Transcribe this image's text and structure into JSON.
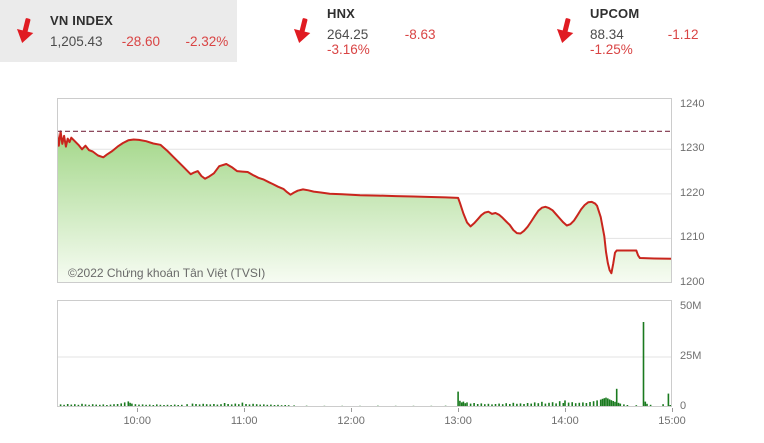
{
  "header": {
    "indices": [
      {
        "name": "VN INDEX",
        "value": "1,205.43",
        "change": "-28.60",
        "change_pct": "-2.32%",
        "direction": "down",
        "highlighted": true
      },
      {
        "name": "HNX",
        "value": "264.25",
        "change": "-8.63",
        "change_pct": "-3.16%",
        "direction": "down",
        "highlighted": false
      },
      {
        "name": "UPCOM",
        "value": "88.34",
        "change": "-1.12",
        "change_pct": "-1.25%",
        "direction": "down",
        "highlighted": false
      }
    ]
  },
  "watermark": "©2022 Chứng khoán Tân Việt (TVSI)",
  "colors": {
    "arrow_red": "#e01b22",
    "change_red": "#d94444",
    "price_line": "#c9251d",
    "reference_dash": "#7d3048",
    "fill_green_top": "#a3d789",
    "fill_green_bottom": "#f7fcf3",
    "volume_bar_green": "#1a7a1f",
    "grid_line": "#e3e3e3",
    "panel_border": "#cccccc",
    "highlight_cell_bg": "#ebebeb"
  },
  "chart_data": [
    {
      "type": "area",
      "name": "vnindex-intraday-price",
      "x_unit": "minutes since 09:15",
      "x_range_minutes": [
        0,
        345
      ],
      "ylim": [
        1200,
        1241.5
      ],
      "y_tick_values": [
        1240,
        1230,
        1220,
        1210,
        1200
      ],
      "y_tick_labels": [
        "1240",
        "1230",
        "1220",
        "1210",
        "1200"
      ],
      "grid_values": [
        1230,
        1220,
        1210
      ],
      "reference_value": 1234.03,
      "close_value": 1205.43,
      "legend": "none",
      "series": [
        [
          0,
          1233.8
        ],
        [
          1,
          1230.8
        ],
        [
          2,
          1234.0
        ],
        [
          3,
          1231.2
        ],
        [
          4,
          1233.0
        ],
        [
          5,
          1230.6
        ],
        [
          6,
          1232.4
        ],
        [
          7,
          1231.6
        ],
        [
          8,
          1232.6
        ],
        [
          10,
          1231.8
        ],
        [
          12,
          1231.0
        ],
        [
          14,
          1230.0
        ],
        [
          16,
          1230.8
        ],
        [
          18,
          1229.8
        ],
        [
          20,
          1229.5
        ],
        [
          23,
          1228.6
        ],
        [
          26,
          1228.2
        ],
        [
          28,
          1228.8
        ],
        [
          31,
          1229.6
        ],
        [
          34,
          1230.6
        ],
        [
          37,
          1231.4
        ],
        [
          40,
          1232.0
        ],
        [
          43,
          1232.2
        ],
        [
          46,
          1232.1
        ],
        [
          50,
          1231.8
        ],
        [
          54,
          1231.3
        ],
        [
          58,
          1231.0
        ],
        [
          62,
          1229.6
        ],
        [
          65,
          1228.4
        ],
        [
          68,
          1227.2
        ],
        [
          71,
          1226.0
        ],
        [
          74,
          1224.8
        ],
        [
          75,
          1224.4
        ],
        [
          77,
          1224.8
        ],
        [
          79,
          1225.1
        ],
        [
          81,
          1224.0
        ],
        [
          83,
          1223.4
        ],
        [
          85,
          1223.8
        ],
        [
          88,
          1224.6
        ],
        [
          91,
          1226.2
        ],
        [
          95,
          1226.7
        ],
        [
          98,
          1226.0
        ],
        [
          101,
          1225.1
        ],
        [
          104,
          1225.0
        ],
        [
          107,
          1224.9
        ],
        [
          110,
          1224.2
        ],
        [
          113,
          1223.6
        ],
        [
          116,
          1223.2
        ],
        [
          119,
          1222.6
        ],
        [
          121,
          1222.2
        ],
        [
          124,
          1221.6
        ],
        [
          127,
          1221.1
        ],
        [
          129,
          1220.4
        ],
        [
          131,
          1219.8
        ],
        [
          133,
          1220.3
        ],
        [
          135,
          1220.7
        ],
        [
          138,
          1221.0
        ],
        [
          141,
          1220.8
        ],
        [
          144,
          1220.5
        ],
        [
          148,
          1220.3
        ],
        [
          153,
          1220.0
        ],
        [
          160,
          1219.9
        ],
        [
          170,
          1219.7
        ],
        [
          180,
          1219.6
        ],
        [
          190,
          1219.5
        ],
        [
          200,
          1219.4
        ],
        [
          210,
          1219.3
        ],
        [
          218,
          1219.2
        ],
        [
          225,
          1219.1
        ],
        [
          226,
          1218.0
        ],
        [
          228,
          1215.6
        ],
        [
          230,
          1213.6
        ],
        [
          232,
          1212.7
        ],
        [
          234,
          1213.4
        ],
        [
          236,
          1214.3
        ],
        [
          238,
          1215.2
        ],
        [
          240,
          1215.8
        ],
        [
          242,
          1216.0
        ],
        [
          244,
          1215.5
        ],
        [
          246,
          1215.7
        ],
        [
          248,
          1215.3
        ],
        [
          250,
          1214.6
        ],
        [
          252,
          1213.8
        ],
        [
          254,
          1213.0
        ],
        [
          256,
          1211.9
        ],
        [
          258,
          1211.2
        ],
        [
          260,
          1211.1
        ],
        [
          262,
          1211.7
        ],
        [
          264,
          1212.6
        ],
        [
          266,
          1213.8
        ],
        [
          268,
          1215.0
        ],
        [
          270,
          1216.2
        ],
        [
          272,
          1216.9
        ],
        [
          274,
          1217.1
        ],
        [
          276,
          1216.8
        ],
        [
          278,
          1216.3
        ],
        [
          280,
          1215.4
        ],
        [
          282,
          1214.5
        ],
        [
          284,
          1213.6
        ],
        [
          286,
          1212.9
        ],
        [
          288,
          1213.2
        ],
        [
          290,
          1214.0
        ],
        [
          292,
          1215.2
        ],
        [
          294,
          1216.5
        ],
        [
          296,
          1217.5
        ],
        [
          298,
          1218.1
        ],
        [
          300,
          1218.2
        ],
        [
          302,
          1217.8
        ],
        [
          303,
          1217.3
        ],
        [
          305,
          1214.8
        ],
        [
          307,
          1210.5
        ],
        [
          308,
          1207.0
        ],
        [
          309,
          1204.5
        ],
        [
          310,
          1202.9
        ],
        [
          311,
          1202.2
        ],
        [
          312,
          1204.3
        ],
        [
          313,
          1206.8
        ],
        [
          314,
          1207.3
        ],
        [
          320,
          1207.3
        ],
        [
          325,
          1207.3
        ],
        [
          326,
          1206.2
        ],
        [
          327,
          1205.6
        ],
        [
          335,
          1205.5
        ],
        [
          345,
          1205.43
        ]
      ]
    },
    {
      "type": "bar",
      "name": "vnindex-intraday-volume",
      "x_unit": "minutes since 09:15",
      "x_range_minutes": [
        0,
        345
      ],
      "ylim_millions": [
        0,
        53.5
      ],
      "y_tick_values": [
        50,
        25,
        0
      ],
      "y_tick_labels": [
        "50M",
        "25M",
        "0"
      ],
      "grid_values": [
        25
      ],
      "bars_minute_millions": [
        [
          0,
          1.9
        ],
        [
          2,
          0.8
        ],
        [
          4,
          0.6
        ],
        [
          6,
          1.0
        ],
        [
          8,
          0.7
        ],
        [
          10,
          0.9
        ],
        [
          12,
          0.6
        ],
        [
          14,
          1.1
        ],
        [
          16,
          0.8
        ],
        [
          18,
          0.6
        ],
        [
          20,
          0.9
        ],
        [
          22,
          0.7
        ],
        [
          24,
          0.6
        ],
        [
          26,
          0.8
        ],
        [
          28,
          0.5
        ],
        [
          30,
          0.7
        ],
        [
          32,
          0.9
        ],
        [
          34,
          1.0
        ],
        [
          36,
          1.3
        ],
        [
          38,
          1.8
        ],
        [
          40,
          2.3
        ],
        [
          41,
          1.6
        ],
        [
          42,
          1.2
        ],
        [
          44,
          0.9
        ],
        [
          46,
          0.7
        ],
        [
          48,
          0.8
        ],
        [
          50,
          0.6
        ],
        [
          52,
          0.7
        ],
        [
          54,
          0.5
        ],
        [
          56,
          0.8
        ],
        [
          58,
          0.6
        ],
        [
          60,
          0.5
        ],
        [
          62,
          0.6
        ],
        [
          64,
          0.5
        ],
        [
          66,
          0.7
        ],
        [
          68,
          0.5
        ],
        [
          70,
          0.6
        ],
        [
          73,
          0.9
        ],
        [
          76,
          1.2
        ],
        [
          78,
          1.0
        ],
        [
          80,
          0.8
        ],
        [
          82,
          1.1
        ],
        [
          84,
          0.9
        ],
        [
          86,
          0.8
        ],
        [
          88,
          1.0
        ],
        [
          90,
          0.7
        ],
        [
          92,
          0.9
        ],
        [
          94,
          1.5
        ],
        [
          96,
          1.0
        ],
        [
          98,
          0.8
        ],
        [
          100,
          1.2
        ],
        [
          102,
          0.9
        ],
        [
          104,
          1.7
        ],
        [
          106,
          1.0
        ],
        [
          108,
          0.8
        ],
        [
          110,
          1.1
        ],
        [
          112,
          0.9
        ],
        [
          114,
          0.7
        ],
        [
          116,
          0.8
        ],
        [
          118,
          0.6
        ],
        [
          120,
          0.7
        ],
        [
          122,
          0.5
        ],
        [
          124,
          0.6
        ],
        [
          126,
          0.4
        ],
        [
          128,
          0.5
        ],
        [
          130,
          0.4
        ],
        [
          133,
          0.3
        ],
        [
          140,
          0.15
        ],
        [
          150,
          0.1
        ],
        [
          160,
          0.12
        ],
        [
          170,
          0.1
        ],
        [
          180,
          0.15
        ],
        [
          190,
          0.1
        ],
        [
          200,
          0.12
        ],
        [
          210,
          0.1
        ],
        [
          218,
          0.15
        ],
        [
          225,
          7.2
        ],
        [
          226,
          2.6
        ],
        [
          227,
          1.8
        ],
        [
          228,
          2.2
        ],
        [
          229,
          1.4
        ],
        [
          230,
          1.8
        ],
        [
          232,
          1.2
        ],
        [
          234,
          1.5
        ],
        [
          236,
          1.0
        ],
        [
          238,
          1.3
        ],
        [
          240,
          0.9
        ],
        [
          242,
          1.1
        ],
        [
          244,
          0.8
        ],
        [
          246,
          1.0
        ],
        [
          248,
          1.2
        ],
        [
          250,
          0.9
        ],
        [
          252,
          1.4
        ],
        [
          254,
          1.0
        ],
        [
          256,
          1.6
        ],
        [
          258,
          1.1
        ],
        [
          260,
          1.3
        ],
        [
          262,
          1.0
        ],
        [
          264,
          1.5
        ],
        [
          266,
          1.2
        ],
        [
          268,
          1.8
        ],
        [
          270,
          1.4
        ],
        [
          272,
          2.1
        ],
        [
          274,
          1.2
        ],
        [
          276,
          1.6
        ],
        [
          278,
          1.9
        ],
        [
          280,
          1.3
        ],
        [
          282,
          2.4
        ],
        [
          284,
          1.5
        ],
        [
          285,
          2.8
        ],
        [
          287,
          1.7
        ],
        [
          289,
          1.9
        ],
        [
          291,
          1.4
        ],
        [
          293,
          1.6
        ],
        [
          295,
          1.8
        ],
        [
          297,
          1.5
        ],
        [
          299,
          2.0
        ],
        [
          301,
          2.4
        ],
        [
          303,
          2.8
        ],
        [
          305,
          3.2
        ],
        [
          306,
          3.6
        ],
        [
          307,
          3.9
        ],
        [
          308,
          4.2
        ],
        [
          309,
          3.8
        ],
        [
          310,
          3.3
        ],
        [
          311,
          2.9
        ],
        [
          312,
          2.5
        ],
        [
          313,
          2.1
        ],
        [
          314,
          8.6
        ],
        [
          315,
          1.6
        ],
        [
          316,
          1.2
        ],
        [
          318,
          0.8
        ],
        [
          320,
          0.5
        ],
        [
          325,
          0.4
        ],
        [
          329,
          42.0
        ],
        [
          330,
          2.2
        ],
        [
          331,
          1.1
        ],
        [
          333,
          0.6
        ],
        [
          340,
          0.9
        ],
        [
          343,
          6.2
        ],
        [
          344,
          0.5
        ]
      ]
    }
  ],
  "x_axis": {
    "ticks": [
      {
        "minute": 45,
        "label": "10:00"
      },
      {
        "minute": 105,
        "label": "11:00"
      },
      {
        "minute": 165,
        "label": "12:00"
      },
      {
        "minute": 225,
        "label": "13:00"
      },
      {
        "minute": 285,
        "label": "14:00"
      },
      {
        "minute": 345,
        "label": "15:00"
      }
    ]
  }
}
